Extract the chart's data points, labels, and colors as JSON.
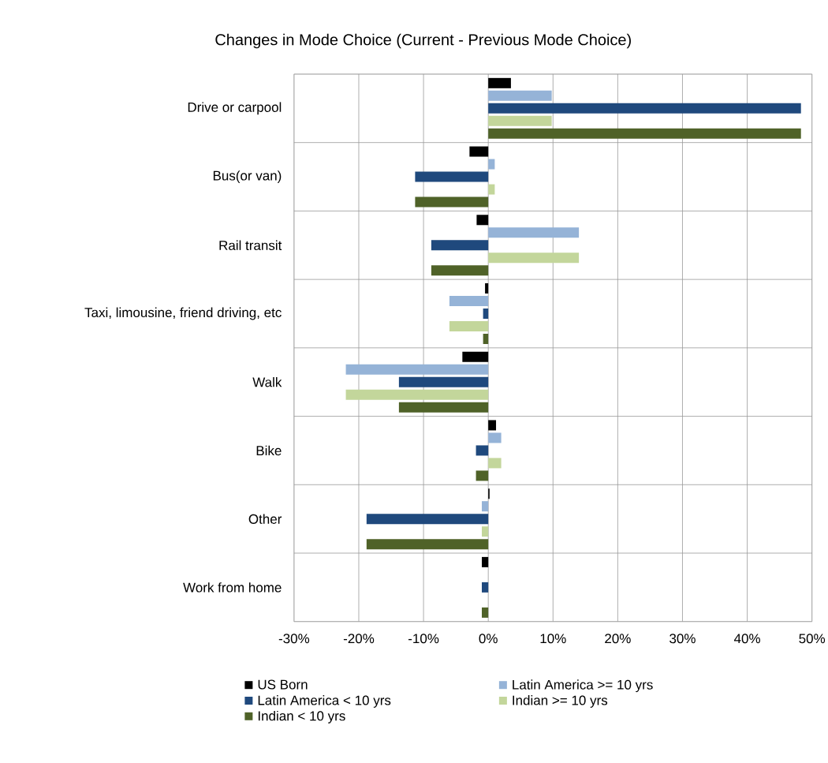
{
  "chart_data": {
    "type": "bar",
    "orientation": "horizontal",
    "title": "Changes in Mode Choice (Current - Previous Mode Choice)",
    "categories": [
      "Drive or carpool",
      "Bus(or van)",
      "Rail transit",
      "Taxi, limousine, friend driving, etc",
      "Walk",
      "Bike",
      "Other",
      "Work from home"
    ],
    "series": [
      {
        "name": "US Born",
        "color": "#000000",
        "values": [
          3.5,
          -2.9,
          -1.8,
          -0.5,
          -4.0,
          1.2,
          0.2,
          -1.0
        ]
      },
      {
        "name": "Latin America >= 10 yrs",
        "color": "#95b3d7",
        "values": [
          9.8,
          1.0,
          14.0,
          -6.0,
          -22.0,
          2.0,
          -1.0,
          0
        ]
      },
      {
        "name": "Latin America < 10 yrs",
        "color": "#1f497d",
        "values": [
          48.3,
          -11.3,
          -8.8,
          -0.8,
          -13.8,
          -1.9,
          -18.8,
          -1.0
        ]
      },
      {
        "name": "Indian >= 10 yrs",
        "color": "#c3d69b",
        "values": [
          9.8,
          1.0,
          14.0,
          -6.0,
          -22.0,
          2.0,
          -1.0,
          0
        ]
      },
      {
        "name": "Indian < 10 yrs",
        "color": "#4f6228",
        "values": [
          48.3,
          -11.3,
          -8.8,
          -0.8,
          -13.8,
          -1.9,
          -18.8,
          -1.0
        ]
      }
    ],
    "xlim": [
      -30,
      50
    ],
    "xticks": [
      {
        "value": -30,
        "label": "-30%"
      },
      {
        "value": -20,
        "label": "-20%"
      },
      {
        "value": -10,
        "label": "-10%"
      },
      {
        "value": 0,
        "label": "0%"
      },
      {
        "value": 10,
        "label": "10%"
      },
      {
        "value": 20,
        "label": "20%"
      },
      {
        "value": 30,
        "label": "30%"
      },
      {
        "value": 40,
        "label": "40%"
      },
      {
        "value": 50,
        "label": "50%"
      }
    ],
    "grid": true,
    "legend": "bottom"
  }
}
